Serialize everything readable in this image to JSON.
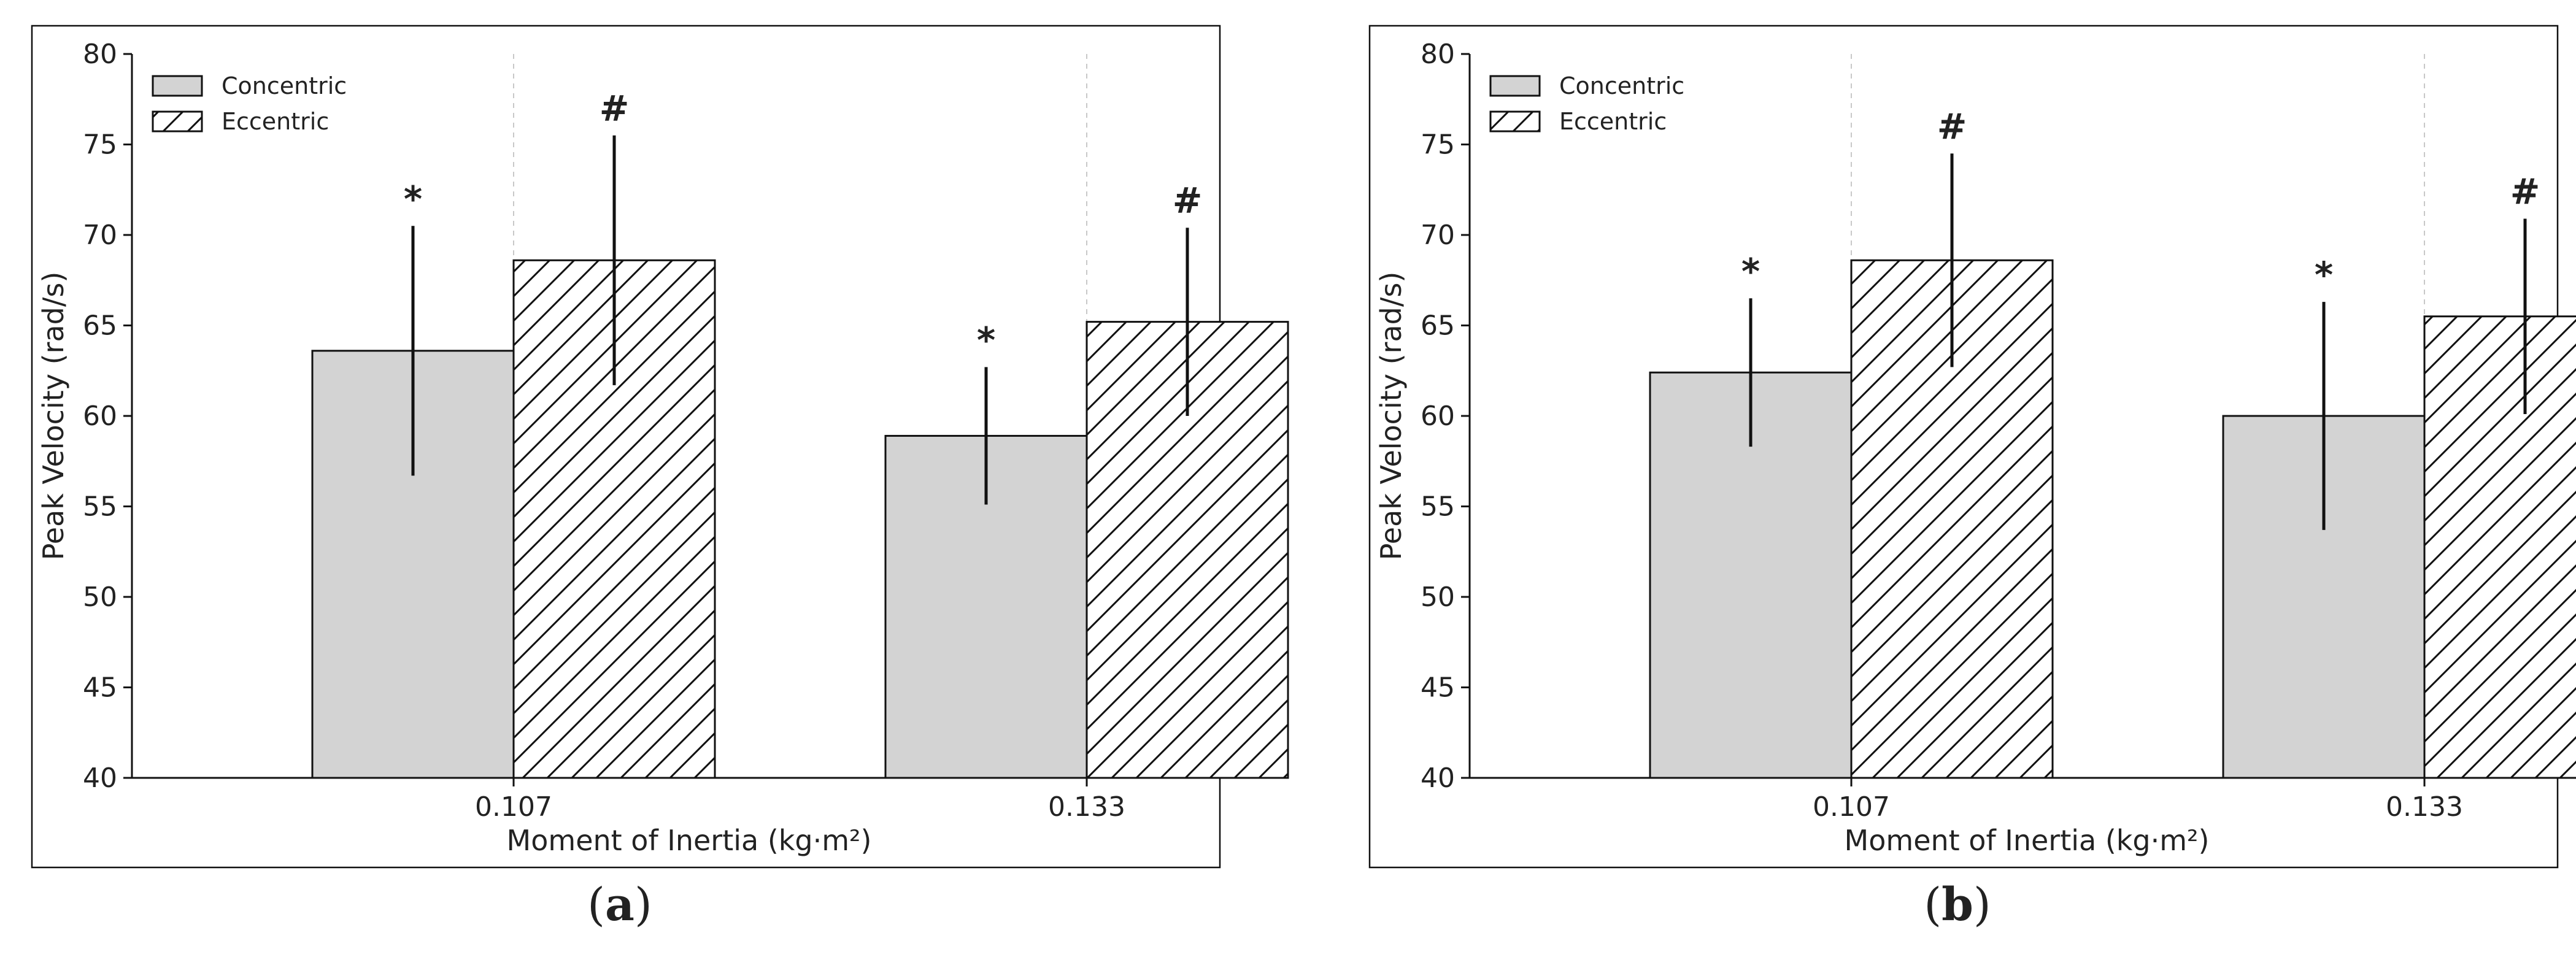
{
  "colors": {
    "concentric_fill": "#d3d3d3",
    "eccentric_fill": "#ffffff",
    "hatch": "#111111",
    "frame": "#111111",
    "error_bar": "#111111",
    "grid": "#c8c8c8"
  },
  "chart_data": [
    {
      "type": "bar",
      "panel_label": {
        "open": "(",
        "letter": "a",
        "close": ")"
      },
      "title": "",
      "xlabel": "Moment of Inertia (kg·m²)",
      "ylabel": "Peak Velocity (rad/s)",
      "ylim": [
        40,
        80
      ],
      "yticks": [
        40,
        45,
        50,
        55,
        60,
        65,
        70,
        75,
        80
      ],
      "categories": [
        "0.107",
        "0.133"
      ],
      "legend_position": "top-left",
      "series": [
        {
          "name": "Concentric",
          "pattern": "solid",
          "values": [
            63.6,
            58.9
          ],
          "errors": [
            6.9,
            3.8
          ],
          "markers": [
            "*",
            "*"
          ]
        },
        {
          "name": "Eccentric",
          "pattern": "hatch",
          "values": [
            68.6,
            65.2
          ],
          "errors": [
            6.9,
            5.2
          ],
          "markers": [
            "#",
            "#"
          ]
        }
      ]
    },
    {
      "type": "bar",
      "panel_label": {
        "open": "(",
        "letter": "b",
        "close": ")"
      },
      "title": "",
      "xlabel": "Moment of Inertia (kg·m²)",
      "ylabel": "Peak Velocity (rad/s)",
      "ylim": [
        40,
        80
      ],
      "yticks": [
        40,
        45,
        50,
        55,
        60,
        65,
        70,
        75,
        80
      ],
      "categories": [
        "0.107",
        "0.133"
      ],
      "legend_position": "top-left",
      "series": [
        {
          "name": "Concentric",
          "pattern": "solid",
          "values": [
            62.4,
            60.0
          ],
          "errors": [
            4.1,
            6.3
          ],
          "markers": [
            "*",
            "*"
          ]
        },
        {
          "name": "Eccentric",
          "pattern": "hatch",
          "values": [
            68.6,
            65.5
          ],
          "errors": [
            5.9,
            5.4
          ],
          "markers": [
            "#",
            "#"
          ]
        }
      ]
    }
  ]
}
